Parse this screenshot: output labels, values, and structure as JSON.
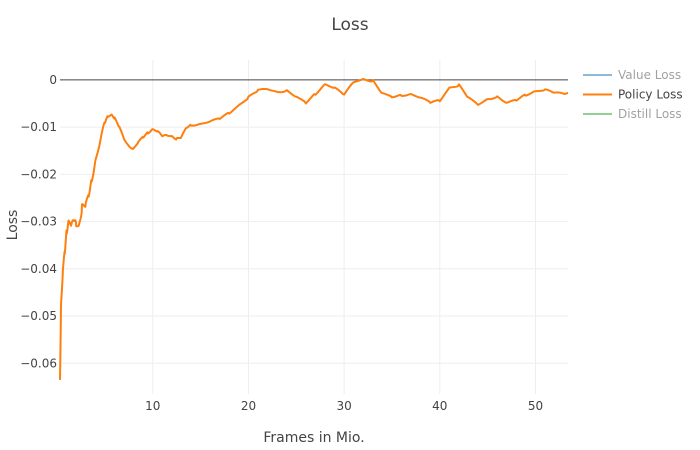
{
  "chart_data": {
    "type": "line",
    "title": "Loss",
    "xlabel": "Frames in Mio.",
    "ylabel": "Loss",
    "xlim": [
      0.3,
      53.4
    ],
    "ylim": [
      -0.0665,
      0.0042
    ],
    "xticks": [
      10,
      20,
      30,
      40,
      50
    ],
    "xtick_labels": [
      "10",
      "20",
      "30",
      "40",
      "50"
    ],
    "yticks": [
      0,
      -0.01,
      -0.02,
      -0.03,
      -0.04,
      -0.05,
      -0.06
    ],
    "ytick_labels": [
      "0",
      "−0.01",
      "−0.02",
      "−0.03",
      "−0.04",
      "−0.05",
      "−0.06"
    ],
    "grid": true,
    "legend_position": "top-right",
    "series": [
      {
        "name": "Value Loss",
        "color": "#1f77b4",
        "legend_only": true,
        "x": [],
        "y": []
      },
      {
        "name": "Policy Loss",
        "color": "#ff7f0e",
        "legend_only": false,
        "x": [
          0.3,
          0.4,
          0.6,
          0.8,
          1.0,
          1.2,
          1.5,
          1.8,
          2.0,
          2.3,
          2.6,
          3.0,
          3.3,
          3.6,
          4.0,
          4.5,
          5.0,
          5.3,
          5.7,
          6.0,
          6.5,
          7.0,
          7.5,
          8.0,
          8.5,
          9.0,
          9.5,
          10.0,
          10.5,
          11.0,
          11.5,
          12.0,
          12.5,
          13.0,
          13.5,
          14.0,
          15.0,
          16.0,
          17.0,
          18.0,
          19.0,
          20.0,
          21.0,
          22.0,
          23.0,
          24.0,
          25.0,
          26.0,
          27.0,
          28.0,
          29.0,
          30.0,
          31.0,
          32.0,
          33.0,
          34.0,
          35.0,
          36.0,
          37.0,
          38.0,
          39.0,
          40.0,
          41.0,
          42.0,
          43.0,
          44.0,
          45.0,
          46.0,
          47.0,
          48.0,
          49.0,
          50.0,
          51.0,
          52.0,
          53.0,
          53.4
        ],
        "y": [
          -0.0635,
          -0.048,
          -0.04,
          -0.036,
          -0.032,
          -0.03,
          -0.031,
          -0.03,
          -0.031,
          -0.031,
          -0.027,
          -0.026,
          -0.024,
          -0.021,
          -0.017,
          -0.013,
          -0.009,
          -0.0078,
          -0.0075,
          -0.0082,
          -0.01,
          -0.0125,
          -0.014,
          -0.0145,
          -0.013,
          -0.012,
          -0.0112,
          -0.0105,
          -0.011,
          -0.012,
          -0.0118,
          -0.012,
          -0.0125,
          -0.012,
          -0.01,
          -0.0095,
          -0.0093,
          -0.0088,
          -0.0082,
          -0.0071,
          -0.0055,
          -0.0038,
          -0.0022,
          -0.0019,
          -0.0025,
          -0.0022,
          -0.0035,
          -0.0048,
          -0.003,
          -0.001,
          -0.0018,
          -0.0032,
          -0.0005,
          0.0001,
          -0.0002,
          -0.0028,
          -0.0035,
          -0.0032,
          -0.003,
          -0.0038,
          -0.0048,
          -0.0045,
          -0.0018,
          -0.0012,
          -0.0038,
          -0.0052,
          -0.004,
          -0.0035,
          -0.0048,
          -0.0042,
          -0.0032,
          -0.0025,
          -0.0022,
          -0.0028,
          -0.003,
          -0.0028
        ]
      },
      {
        "name": "Distill Loss",
        "color": "#2ca02c",
        "legend_only": true,
        "x": [],
        "y": []
      }
    ]
  }
}
